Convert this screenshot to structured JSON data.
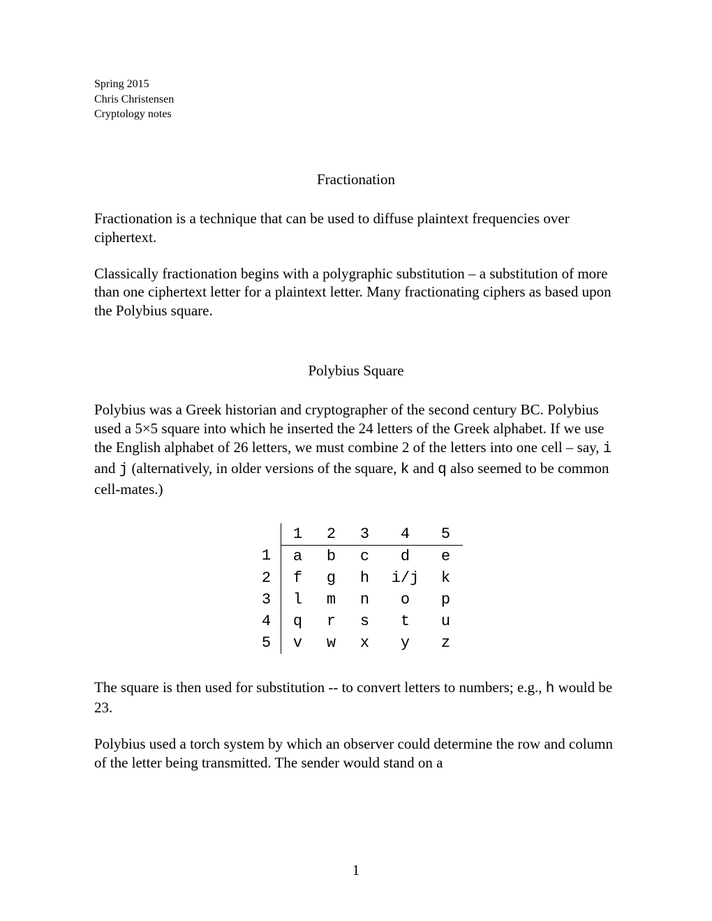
{
  "header": {
    "term": "Spring 2015",
    "author": "Chris Christensen",
    "course": "Cryptology notes"
  },
  "section1": {
    "title": "Fractionation",
    "para1": "Fractionation is a technique that can be used to diffuse plaintext frequencies over ciphertext.",
    "para2": "Classically fractionation begins with a polygraphic substitution – a substitution of more than one ciphertext letter for a plaintext letter.  Many fractionating ciphers as based upon the Polybius square."
  },
  "section2": {
    "title": "Polybius Square",
    "para1_a": "Polybius was a Greek historian and cryptographer of the second century BC. Polybius used a  5",
    "para1_b": "5 square into which he inserted the 24 letters of the Greek alphabet.  If we use the English alphabet of 26 letters, we must combine 2 of the letters into one cell – say, ",
    "para1_c": " and ",
    "para1_d": " (alternatively, in older versions of the square, ",
    "para1_e": " and ",
    "para1_f": " also seemed to be common cell-mates.)",
    "mono_i": "i",
    "mono_j": "j",
    "mono_k": "k",
    "mono_q": "q",
    "times": "×",
    "para2_a": "The square is then used for substitution -- to convert letters to numbers; e.g., ",
    "mono_h": "h",
    "para2_b": " would be 23.",
    "para3": "Polybius used a torch system by which an observer could determine the row and column of the letter being transmitted.  The sender would stand on a"
  },
  "polybius": {
    "col_labels": [
      "1",
      "2",
      "3",
      "4",
      "5"
    ],
    "row_labels": [
      "1",
      "2",
      "3",
      "4",
      "5"
    ],
    "cells": [
      [
        "a",
        "b",
        "c",
        "d",
        "e"
      ],
      [
        "f",
        "g",
        "h",
        "i/j",
        "k"
      ],
      [
        "l",
        "m",
        "n",
        "o",
        "p"
      ],
      [
        "q",
        "r",
        "s",
        "t",
        "u"
      ],
      [
        "v",
        "w",
        "x",
        "y",
        "z"
      ]
    ]
  },
  "page_number": "1"
}
